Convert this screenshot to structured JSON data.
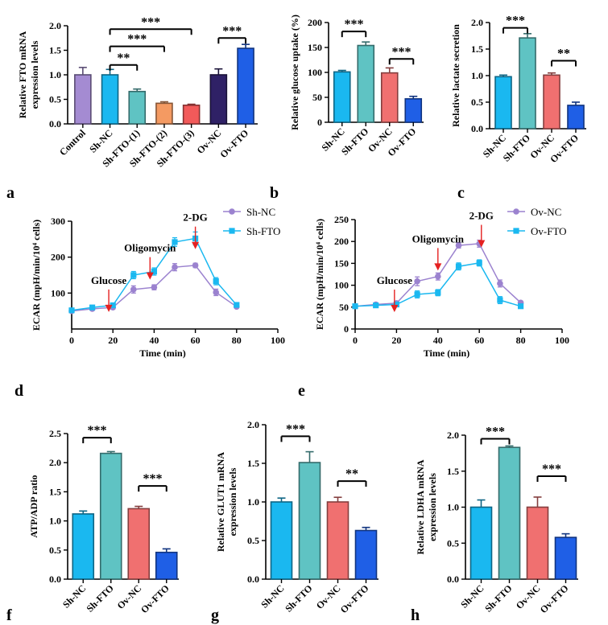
{
  "figure_labels": {
    "a": "a",
    "b": "b",
    "c": "c",
    "d": "d",
    "e": "e",
    "f": "f",
    "g": "g",
    "h": "h"
  },
  "chart_data": [
    {
      "panel": "a",
      "type": "bar",
      "ylabel": "Relative FTO mRNA expression levels",
      "categories": [
        "Control",
        "Sh-NC",
        "Sh-FTO-(1)",
        "Sh-FTO-(2)",
        "Sh-FTO-(3)",
        "Ov-NC",
        "Ov-FTO"
      ],
      "values": [
        1.0,
        1.0,
        0.66,
        0.42,
        0.38,
        1.0,
        1.54
      ],
      "errors": [
        0.15,
        0.11,
        0.05,
        0.03,
        0.02,
        0.12,
        0.08
      ],
      "colors": [
        "#a48bd2",
        "#1ab8f0",
        "#5fc3c3",
        "#f49a62",
        "#f25a5a",
        "#2f2166",
        "#1f5fe6"
      ],
      "ylim": [
        0,
        2.0
      ],
      "yticks": [
        0,
        0.5,
        1.0,
        1.5,
        2.0
      ],
      "ytick_labels": [
        "0.0",
        "0.5",
        "1.0",
        "1.5",
        "2.0"
      ],
      "significance": [
        {
          "from": 1,
          "to": 2,
          "label": "**",
          "level": 1.2
        },
        {
          "from": 1,
          "to": 3,
          "label": "***",
          "level": 1.58
        },
        {
          "from": 1,
          "to": 4,
          "label": "***",
          "level": 1.93
        },
        {
          "from": 5,
          "to": 6,
          "label": "***",
          "level": 1.75
        }
      ]
    },
    {
      "panel": "b",
      "type": "bar",
      "ylabel": "Relative glucose uptake (%)",
      "categories": [
        "Sh-NC",
        "Sh-FTO",
        "Ov-NC",
        "Ov-FTO"
      ],
      "values": [
        101,
        154,
        99,
        47
      ],
      "errors": [
        3,
        7,
        10,
        5
      ],
      "colors": [
        "#1ab8f0",
        "#5fc3c3",
        "#f07070",
        "#1f5fe6"
      ],
      "ylim": [
        0,
        200
      ],
      "yticks": [
        0,
        50,
        100,
        150,
        200
      ],
      "ytick_labels": [
        "0",
        "50",
        "100",
        "150",
        "200"
      ],
      "significance": [
        {
          "from": 0,
          "to": 1,
          "label": "***",
          "level": 182
        },
        {
          "from": 2,
          "to": 3,
          "label": "***",
          "level": 127
        }
      ]
    },
    {
      "panel": "c",
      "type": "bar",
      "ylabel": "Relative lactate secretion",
      "categories": [
        "Sh-NC",
        "Sh-FTO",
        "Ov-NC",
        "Ov-FTO"
      ],
      "values": [
        0.98,
        1.71,
        1.01,
        0.44
      ],
      "errors": [
        0.03,
        0.08,
        0.04,
        0.06
      ],
      "colors": [
        "#1ab8f0",
        "#5fc3c3",
        "#f07070",
        "#1f5fe6"
      ],
      "ylim": [
        0,
        2.0
      ],
      "yticks": [
        0,
        0.5,
        1.0,
        1.5,
        2.0
      ],
      "ytick_labels": [
        "0.0",
        "0.5",
        "1.0",
        "1.5",
        "2.0"
      ],
      "significance": [
        {
          "from": 0,
          "to": 1,
          "label": "***",
          "level": 1.9
        },
        {
          "from": 2,
          "to": 3,
          "label": "**",
          "level": 1.28
        }
      ]
    },
    {
      "panel": "d",
      "type": "line",
      "xlabel": "Time (min)",
      "ylabel": "ECAR (mpH/min/10⁴ cells)",
      "x": [
        0,
        10,
        20,
        30,
        40,
        50,
        60,
        70,
        80
      ],
      "xlim": [
        0,
        100
      ],
      "xticks": [
        0,
        20,
        40,
        60,
        80,
        100
      ],
      "ylim": [
        0,
        300
      ],
      "yticks": [
        100,
        200,
        300
      ],
      "series": [
        {
          "name": "Sh-NC",
          "color": "#9b82cf",
          "marker": "circle",
          "values": [
            50,
            56,
            60,
            110,
            116,
            172,
            177,
            102,
            62
          ],
          "errors": [
            5,
            4,
            5,
            10,
            7,
            10,
            6,
            9,
            4
          ]
        },
        {
          "name": "Sh-FTO",
          "color": "#1ab8f0",
          "marker": "square",
          "values": [
            52,
            60,
            66,
            150,
            160,
            242,
            252,
            133,
            67
          ],
          "errors": [
            5,
            5,
            6,
            10,
            10,
            12,
            18,
            10,
            5
          ]
        }
      ],
      "annotations": [
        {
          "text": "Glucose",
          "x": 18,
          "arrow_top": 110
        },
        {
          "text": "Oligomycin",
          "x": 38,
          "arrow_top": 200
        },
        {
          "text": "2-DG",
          "x": 60,
          "arrow_top": 285
        }
      ]
    },
    {
      "panel": "e",
      "type": "line",
      "xlabel": "Time (min)",
      "ylabel": "ECAR (mpH/min/10⁴ cells)",
      "x": [
        0,
        10,
        20,
        30,
        40,
        50,
        60,
        70,
        80
      ],
      "xlim": [
        0,
        100
      ],
      "xticks": [
        0,
        20,
        40,
        60,
        80,
        100
      ],
      "ylim": [
        0,
        250
      ],
      "yticks": [
        0,
        50,
        100,
        150,
        200,
        250
      ],
      "series": [
        {
          "name": "Ov-NC",
          "color": "#9b82cf",
          "marker": "circle",
          "values": [
            52,
            56,
            59,
            109,
            120,
            191,
            195,
            104,
            60
          ],
          "errors": [
            3,
            3,
            5,
            10,
            8,
            6,
            8,
            8,
            3
          ]
        },
        {
          "name": "Ov-FTO",
          "color": "#1ab8f0",
          "marker": "square",
          "values": [
            52,
            54,
            56,
            79,
            83,
            143,
            151,
            66,
            52
          ],
          "errors": [
            3,
            3,
            5,
            8,
            7,
            8,
            7,
            8,
            3
          ]
        }
      ],
      "annotations": [
        {
          "text": "Glucose",
          "x": 19,
          "arrow_top": 90
        },
        {
          "text": "Oligomycin",
          "x": 40,
          "arrow_top": 185
        },
        {
          "text": "2-DG",
          "x": 61,
          "arrow_top": 238
        }
      ]
    },
    {
      "panel": "f",
      "type": "bar",
      "ylabel": "ATP/ADP ratio",
      "categories": [
        "Sh-NC",
        "Sh-FTO",
        "Ov-NC",
        "Ov-FTO"
      ],
      "values": [
        1.12,
        2.16,
        1.21,
        0.46
      ],
      "errors": [
        0.05,
        0.03,
        0.04,
        0.06
      ],
      "colors": [
        "#1ab8f0",
        "#5fc3c3",
        "#f07070",
        "#1f5fe6"
      ],
      "ylim": [
        0,
        2.5
      ],
      "yticks": [
        0,
        0.5,
        1.0,
        1.5,
        2.0,
        2.5
      ],
      "ytick_labels": [
        "0.0",
        "0.5",
        "1.0",
        "1.5",
        "2.0",
        "2.5"
      ],
      "significance": [
        {
          "from": 0,
          "to": 1,
          "label": "***",
          "level": 2.43
        },
        {
          "from": 2,
          "to": 3,
          "label": "***",
          "level": 1.6
        }
      ]
    },
    {
      "panel": "g",
      "type": "bar",
      "ylabel": "Relative GLUT1 mRNA expression levels",
      "categories": [
        "Sh-NC",
        "Sh-FTO",
        "Ov-NC",
        "Ov-FTO"
      ],
      "values": [
        1.0,
        1.51,
        1.0,
        0.63
      ],
      "errors": [
        0.05,
        0.14,
        0.06,
        0.04
      ],
      "colors": [
        "#1ab8f0",
        "#5fc3c3",
        "#f07070",
        "#1f5fe6"
      ],
      "ylim": [
        0,
        2.0
      ],
      "yticks": [
        0,
        0.5,
        1.0,
        1.5,
        2.0
      ],
      "ytick_labels": [
        "0.0",
        "0.5",
        "1.0",
        "1.5",
        "2.0"
      ],
      "significance": [
        {
          "from": 0,
          "to": 1,
          "label": "***",
          "level": 1.85
        },
        {
          "from": 2,
          "to": 3,
          "label": "**",
          "level": 1.27
        }
      ]
    },
    {
      "panel": "h",
      "type": "bar",
      "ylabel": "Relative LDHA mRNA expression levels",
      "categories": [
        "Sh-NC",
        "Sh-FTO",
        "Ov-NC",
        "Ov-FTO"
      ],
      "values": [
        1.0,
        1.83,
        1.0,
        0.58
      ],
      "errors": [
        0.1,
        0.02,
        0.14,
        0.05
      ],
      "colors": [
        "#1ab8f0",
        "#5fc3c3",
        "#f07070",
        "#1f5fe6"
      ],
      "ylim": [
        0,
        2.0
      ],
      "yticks": [
        0,
        0.5,
        1.0,
        1.5,
        2.0
      ],
      "ytick_labels": [
        "0.0",
        "0.5",
        "1.0",
        "1.5",
        "2.0"
      ],
      "significance": [
        {
          "from": 0,
          "to": 1,
          "label": "***",
          "level": 1.95
        },
        {
          "from": 2,
          "to": 3,
          "label": "***",
          "level": 1.43
        }
      ]
    }
  ]
}
